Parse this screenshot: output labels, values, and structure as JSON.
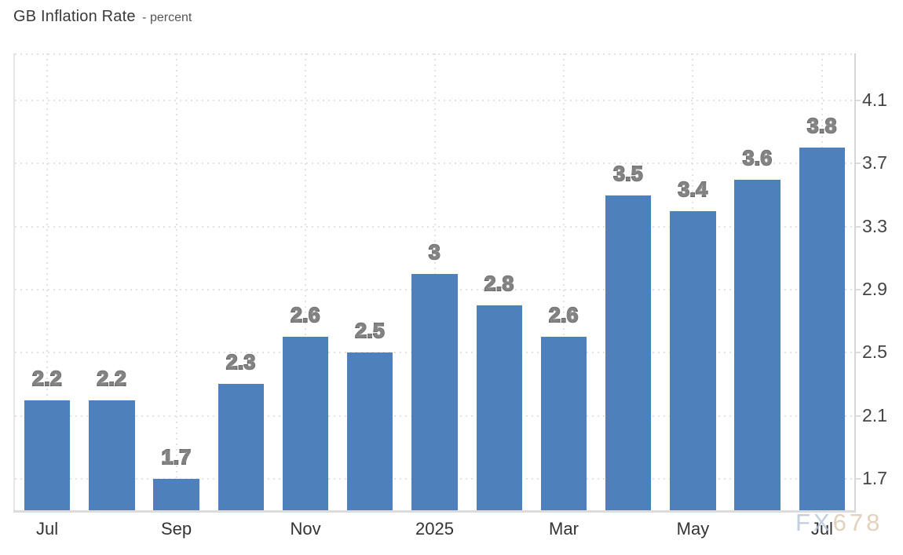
{
  "header": {
    "title": "GB Inflation Rate",
    "subtitle": "- percent"
  },
  "watermark": {
    "fx": "FX",
    "num": "678"
  },
  "colors": {
    "bar": "#4e80bc",
    "watermark_fx": "#b5c4d7",
    "watermark_num": "#dcc6ad",
    "grid": "#e2e2e2"
  },
  "chart_data": {
    "type": "bar",
    "title": "GB Inflation Rate",
    "unit_label": "percent",
    "values": [
      2.2,
      2.2,
      1.7,
      2.3,
      2.6,
      2.5,
      3,
      2.8,
      2.6,
      3.5,
      3.4,
      3.6,
      3.8
    ],
    "bar_labels": [
      "2.2",
      "2.2",
      "1.7",
      "2.3",
      "2.6",
      "2.5",
      "3",
      "2.8",
      "2.6",
      "3.5",
      "3.4",
      "3.6",
      "3.8"
    ],
    "x_ticks": [
      {
        "bar_index": 0,
        "label": "Jul"
      },
      {
        "bar_index": 2,
        "label": "Sep"
      },
      {
        "bar_index": 4,
        "label": "Nov"
      },
      {
        "bar_index": 6,
        "label": "2025"
      },
      {
        "bar_index": 8,
        "label": "Mar"
      },
      {
        "bar_index": 10,
        "label": "May"
      },
      {
        "bar_index": 12,
        "label": "Jul"
      }
    ],
    "y_ticks": [
      1.7,
      2.1,
      2.5,
      2.9,
      3.3,
      3.7,
      4.1
    ],
    "y_tick_labels": [
      "1.7",
      "2.1",
      "2.5",
      "2.9",
      "3.3",
      "3.7",
      "4.1"
    ],
    "ylim": [
      1.5,
      4.4
    ],
    "bar_color": "#4e80bc",
    "grid": true,
    "legend": false,
    "y_axis_side": "right",
    "value_labels_shown": true
  }
}
